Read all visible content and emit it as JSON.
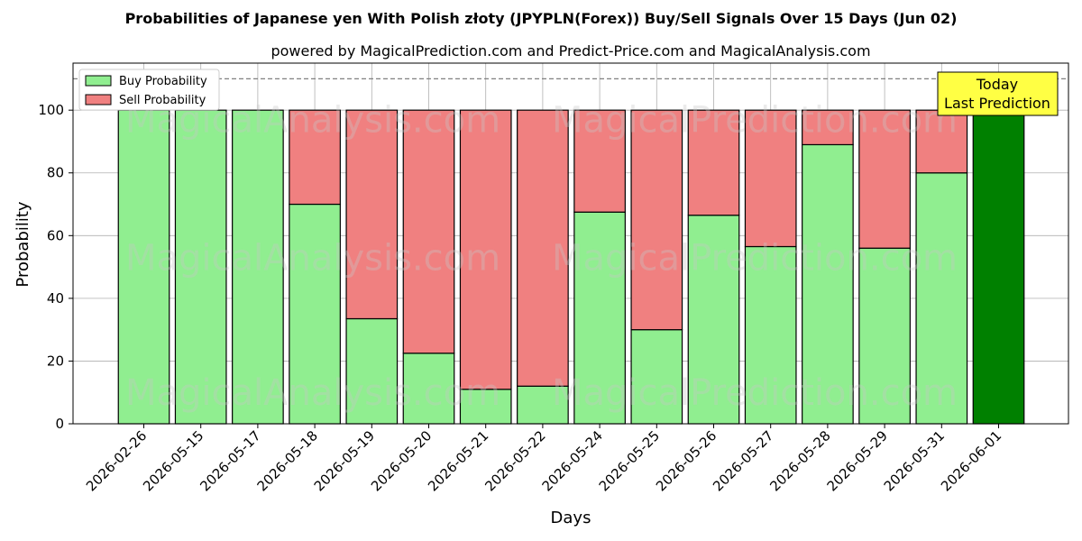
{
  "chart_data": {
    "type": "bar",
    "stacked": true,
    "title": "Probabilities of Japanese yen With Polish złoty (JPYPLN(Forex)) Buy/Sell Signals Over 15 Days (Jun 02)",
    "subtitle": "powered by MagicalPrediction.com and Predict-Price.com and MagicalAnalysis.com",
    "xlabel": "Days",
    "ylabel": "Probability",
    "ylim": [
      0,
      115
    ],
    "yticks": [
      0,
      20,
      40,
      60,
      80,
      100
    ],
    "grid": true,
    "legend_position": "top-left",
    "categories": [
      "2026-02-26",
      "2026-05-15",
      "2026-05-17",
      "2026-05-18",
      "2026-05-19",
      "2026-05-20",
      "2026-05-21",
      "2026-05-22",
      "2026-05-24",
      "2026-05-25",
      "2026-05-26",
      "2026-05-27",
      "2026-05-28",
      "2026-05-29",
      "2026-05-31",
      "2026-06-01"
    ],
    "series": [
      {
        "name": "Buy Probability",
        "color": "#90ee90",
        "values": [
          100,
          100,
          100,
          70,
          33.5,
          22.5,
          11,
          12,
          67.5,
          30,
          66.5,
          56.5,
          89,
          56,
          80,
          100
        ]
      },
      {
        "name": "Sell Probability",
        "color": "#f08080",
        "values": [
          0,
          0,
          0,
          30,
          66.5,
          77.5,
          89,
          88,
          32.5,
          70,
          33.5,
          43.5,
          11,
          44,
          20,
          0
        ]
      }
    ],
    "today_bar_color": "#008000",
    "threshold_line": 110,
    "annotation": {
      "line1": "Today",
      "line2": "Last Prediction",
      "color": "#ffff44"
    },
    "watermarks": [
      "MagicalAnalysis.com",
      "MagicalPrediction.com"
    ]
  }
}
